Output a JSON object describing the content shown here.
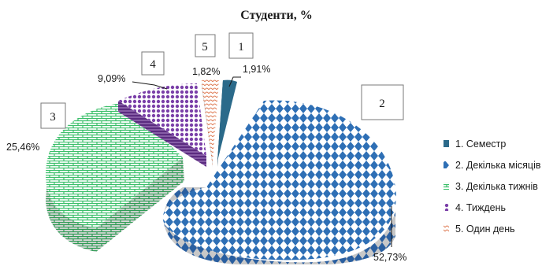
{
  "chart_data": {
    "type": "pie",
    "title": "Студенти, %",
    "slices": [
      {
        "index": "1",
        "name": "1. Семестр",
        "value": 1.91,
        "label": "1,91%",
        "color": "#2b6a8a"
      },
      {
        "index": "2",
        "name": "2. Декілька місяців",
        "value": 52.73,
        "label": "52,73%",
        "color": "#2e6fb5"
      },
      {
        "index": "3",
        "name": "3. Декілька тижнів",
        "value": 25.46,
        "label": "25,46%",
        "color": "#3bbf6a"
      },
      {
        "index": "4",
        "name": "4. Тиждень",
        "value": 9.09,
        "label": "9,09%",
        "color": "#7a3fa8"
      },
      {
        "index": "5",
        "name": "5. Один день",
        "value": 1.82,
        "label": "1,82%",
        "color": "#e0805a"
      }
    ],
    "legend_position": "right",
    "style": "3d exploded pie with patterned fills"
  }
}
